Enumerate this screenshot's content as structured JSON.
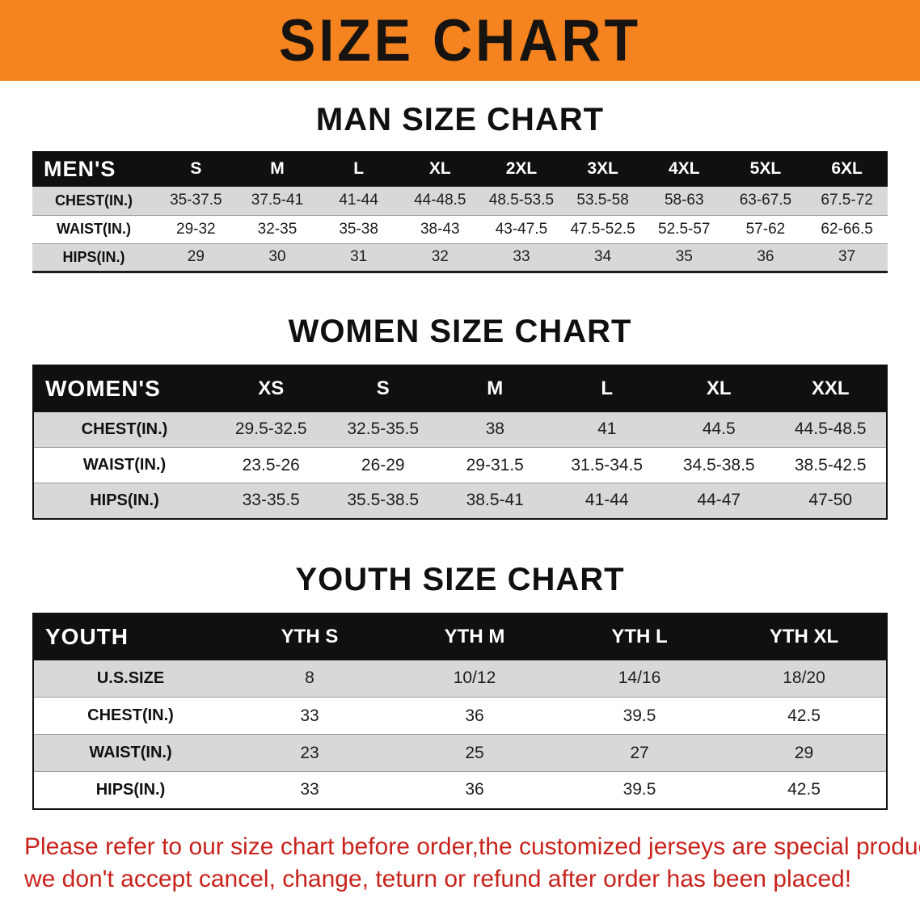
{
  "banner": {
    "title": "SIZE CHART",
    "bg_color": "#f5831f",
    "text_color": "#161310"
  },
  "sections": {
    "men": {
      "heading": "MAN SIZE CHART",
      "table": {
        "header": [
          "MEN'S",
          "S",
          "M",
          "L",
          "XL",
          "2XL",
          "3XL",
          "4XL",
          "5XL",
          "6XL"
        ],
        "rows": [
          {
            "label": "CHEST(IN.)",
            "values": [
              "35-37.5",
              "37.5-41",
              "41-44",
              "44-48.5",
              "48.5-53.5",
              "53.5-58",
              "58-63",
              "63-67.5",
              "67.5-72"
            ]
          },
          {
            "label": "WAIST(IN.)",
            "values": [
              "29-32",
              "32-35",
              "35-38",
              "38-43",
              "43-47.5",
              "47.5-52.5",
              "52.5-57",
              "57-62",
              "62-66.5"
            ]
          },
          {
            "label": "HIPS(IN.)",
            "values": [
              "29",
              "30",
              "31",
              "32",
              "33",
              "34",
              "35",
              "36",
              "37"
            ]
          }
        ]
      }
    },
    "women": {
      "heading": "WOMEN SIZE CHART",
      "table": {
        "header": [
          "WOMEN'S",
          "XS",
          "S",
          "M",
          "L",
          "XL",
          "XXL"
        ],
        "rows": [
          {
            "label": "CHEST(IN.)",
            "values": [
              "29.5-32.5",
              "32.5-35.5",
              "38",
              "41",
              "44.5",
              "44.5-48.5"
            ]
          },
          {
            "label": "WAIST(IN.)",
            "values": [
              "23.5-26",
              "26-29",
              "29-31.5",
              "31.5-34.5",
              "34.5-38.5",
              "38.5-42.5"
            ]
          },
          {
            "label": "HIPS(IN.)",
            "values": [
              "33-35.5",
              "35.5-38.5",
              "38.5-41",
              "41-44",
              "44-47",
              "47-50"
            ]
          }
        ]
      }
    },
    "youth": {
      "heading": "YOUTH SIZE CHART",
      "table": {
        "header": [
          "YOUTH",
          "YTH S",
          "YTH M",
          "YTH L",
          "YTH XL"
        ],
        "rows": [
          {
            "label": "U.S.SIZE",
            "values": [
              "8",
              "10/12",
              "14/16",
              "18/20"
            ]
          },
          {
            "label": "CHEST(IN.)",
            "values": [
              "33",
              "36",
              "39.5",
              "42.5"
            ]
          },
          {
            "label": "WAIST(IN.)",
            "values": [
              "23",
              "25",
              "27",
              "29"
            ]
          },
          {
            "label": "HIPS(IN.)",
            "values": [
              "33",
              "36",
              "39.5",
              "42.5"
            ]
          }
        ]
      }
    }
  },
  "disclaimer": {
    "line1": "Please refer to our size chart before order,the customized jerseys are special products,",
    "line2": "we don't accept cancel, change, teturn or refund after order has been placed!",
    "color": "#c8231c"
  }
}
